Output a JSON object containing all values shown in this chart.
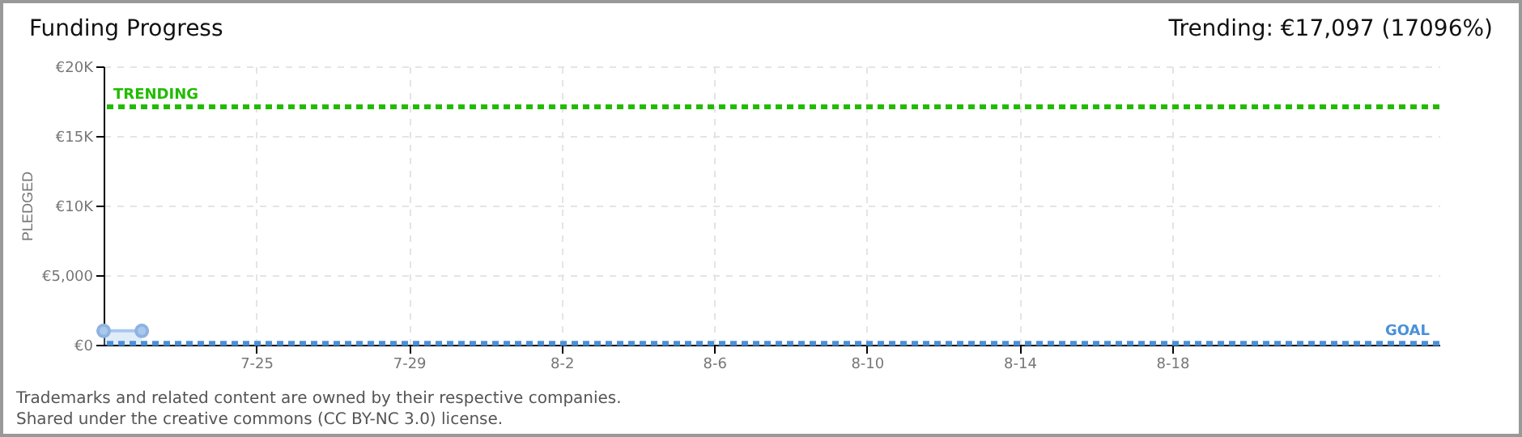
{
  "chart_data": {
    "type": "area",
    "title": "Funding Progress",
    "subtitle": "Trending: €17,097 (17096%)",
    "ylabel": "PLEDGED",
    "x": [
      "--07-21",
      "--07-22"
    ],
    "series": [
      {
        "color": "#a9c8ee",
        "values": [
          1000,
          1000
        ]
      }
    ],
    "xlim": [
      "--07-21",
      "--08-25"
    ],
    "xticks": [
      {
        "value": "--07-25",
        "label": "7-25"
      },
      {
        "value": "--07-29",
        "label": "7-29"
      },
      {
        "value": "--08-02",
        "label": "8-2"
      },
      {
        "value": "--08-06",
        "label": "8-6"
      },
      {
        "value": "--08-10",
        "label": "8-10"
      },
      {
        "value": "--08-14",
        "label": "8-14"
      },
      {
        "value": "--08-18",
        "label": "8-18"
      }
    ],
    "ylim": [
      0,
      20000
    ],
    "yticks": [
      {
        "value": 0,
        "label": "€0"
      },
      {
        "value": 5000,
        "label": "€5,000"
      },
      {
        "value": 10000,
        "label": "€10K"
      },
      {
        "value": 15000,
        "label": "€15K"
      },
      {
        "value": 20000,
        "label": "€20K"
      }
    ],
    "ref_lines": [
      {
        "axis": "y",
        "value": 17097,
        "label": "TRENDING",
        "color": "#22bb00",
        "line_style": "dashed"
      },
      {
        "axis": "y",
        "value": 100,
        "label": "GOAL",
        "color": "#4a90d9",
        "line_style": "dashed"
      }
    ],
    "grid": true,
    "marker": "circle",
    "annotations": [
      "Trademarks and related content are owned by their respective companies.",
      "Shared under the creative commons (CC BY-NC 3.0) license."
    ]
  }
}
